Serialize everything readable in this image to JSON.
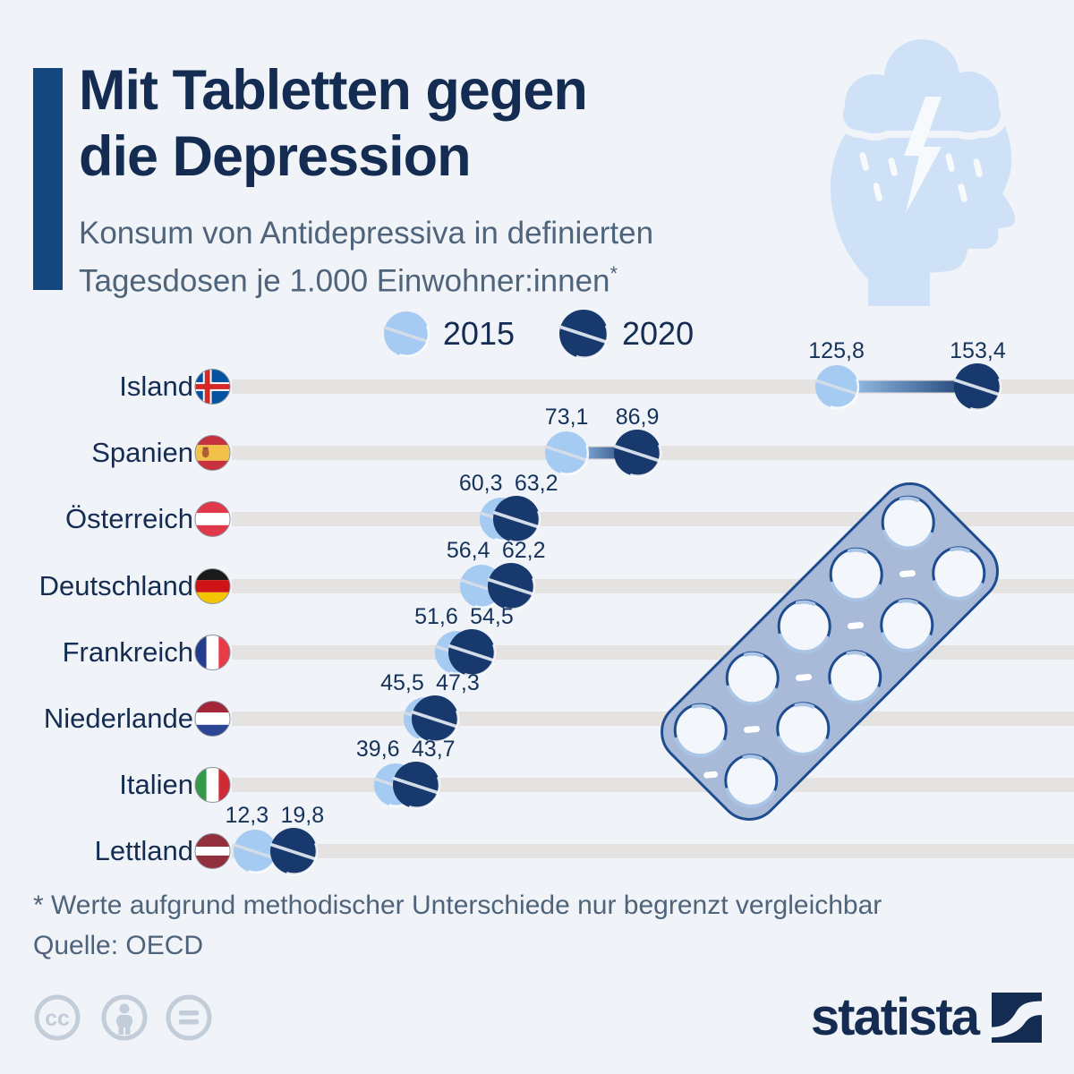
{
  "header": {
    "title_lines": [
      "Mit Tabletten gegen",
      "die Depression"
    ],
    "subtitle_line1": "Konsum von Antidepressiva in definierten",
    "subtitle_line2": "Tagesdosen je 1.000 Einwohner:innen",
    "subtitle_asterisk": "*",
    "accent_color": "#14477e"
  },
  "legend": {
    "items": [
      {
        "label": "2015",
        "color": "#a5cbf3"
      },
      {
        "label": "2020",
        "color": "#17396d"
      }
    ]
  },
  "chart_data": {
    "type": "dumbbell",
    "title": "Mit Tabletten gegen die Depression",
    "subtitle": "Konsum von Antidepressiva in definierten Tagesdosen je 1.000 Einwohner:innen*",
    "series_names": [
      "2015",
      "2020"
    ],
    "categories": [
      "Island",
      "Spanien",
      "Österreich",
      "Deutschland",
      "Frankreich",
      "Niederlande",
      "Italien",
      "Lettland"
    ],
    "rows": [
      {
        "country": "Island",
        "flag": "island",
        "v2015": 125.8,
        "v2020": 153.4,
        "label2015": "125,8",
        "label2020": "153,4"
      },
      {
        "country": "Spanien",
        "flag": "spanien",
        "v2015": 73.1,
        "v2020": 86.9,
        "label2015": "73,1",
        "label2020": "86,9"
      },
      {
        "country": "Österreich",
        "flag": "oesterreich",
        "v2015": 60.3,
        "v2020": 63.2,
        "label2015": "60,3",
        "label2020": "63,2"
      },
      {
        "country": "Deutschland",
        "flag": "deutschland",
        "v2015": 56.4,
        "v2020": 62.2,
        "label2015": "56,4",
        "label2020": "62,2"
      },
      {
        "country": "Frankreich",
        "flag": "frankreich",
        "v2015": 51.6,
        "v2020": 54.5,
        "label2015": "51,6",
        "label2020": "54,5"
      },
      {
        "country": "Niederlande",
        "flag": "niederlande",
        "v2015": 45.5,
        "v2020": 47.3,
        "label2015": "45,5",
        "label2020": "47,3"
      },
      {
        "country": "Italien",
        "flag": "italien",
        "v2015": 39.6,
        "v2020": 43.7,
        "label2015": "39,6",
        "label2020": "43,7"
      },
      {
        "country": "Lettland",
        "flag": "lettland",
        "v2015": 12.3,
        "v2020": 19.8,
        "label2015": "12,3",
        "label2020": "19,8"
      }
    ],
    "x_axis": {
      "min": 0,
      "max": 160,
      "visible": false,
      "grid": false
    },
    "legend_position": "top-center",
    "colors": {
      "s2015": "#a5cbf3",
      "s2020": "#17396d",
      "track": "#e4e3e1"
    }
  },
  "footer": {
    "footnote": "* Werte aufgrund methodischer Unterschiede nur begrenzt vergleichbar",
    "source": "Quelle: OECD"
  },
  "branding": {
    "wordmark": "statista",
    "cc_text": "cc"
  },
  "colors": {
    "background": "#f0f4f9",
    "title": "#152c52",
    "subtitle": "#4f647b",
    "pill_2015": "#a5cbf3",
    "pill_2020": "#17396d",
    "track": "#e4e3e1",
    "illustration_blue": "#cfe1f7",
    "blister_fill": "#a8bad7",
    "blister_stroke": "#1d4d90",
    "license_gray": "#c3cdd9"
  }
}
